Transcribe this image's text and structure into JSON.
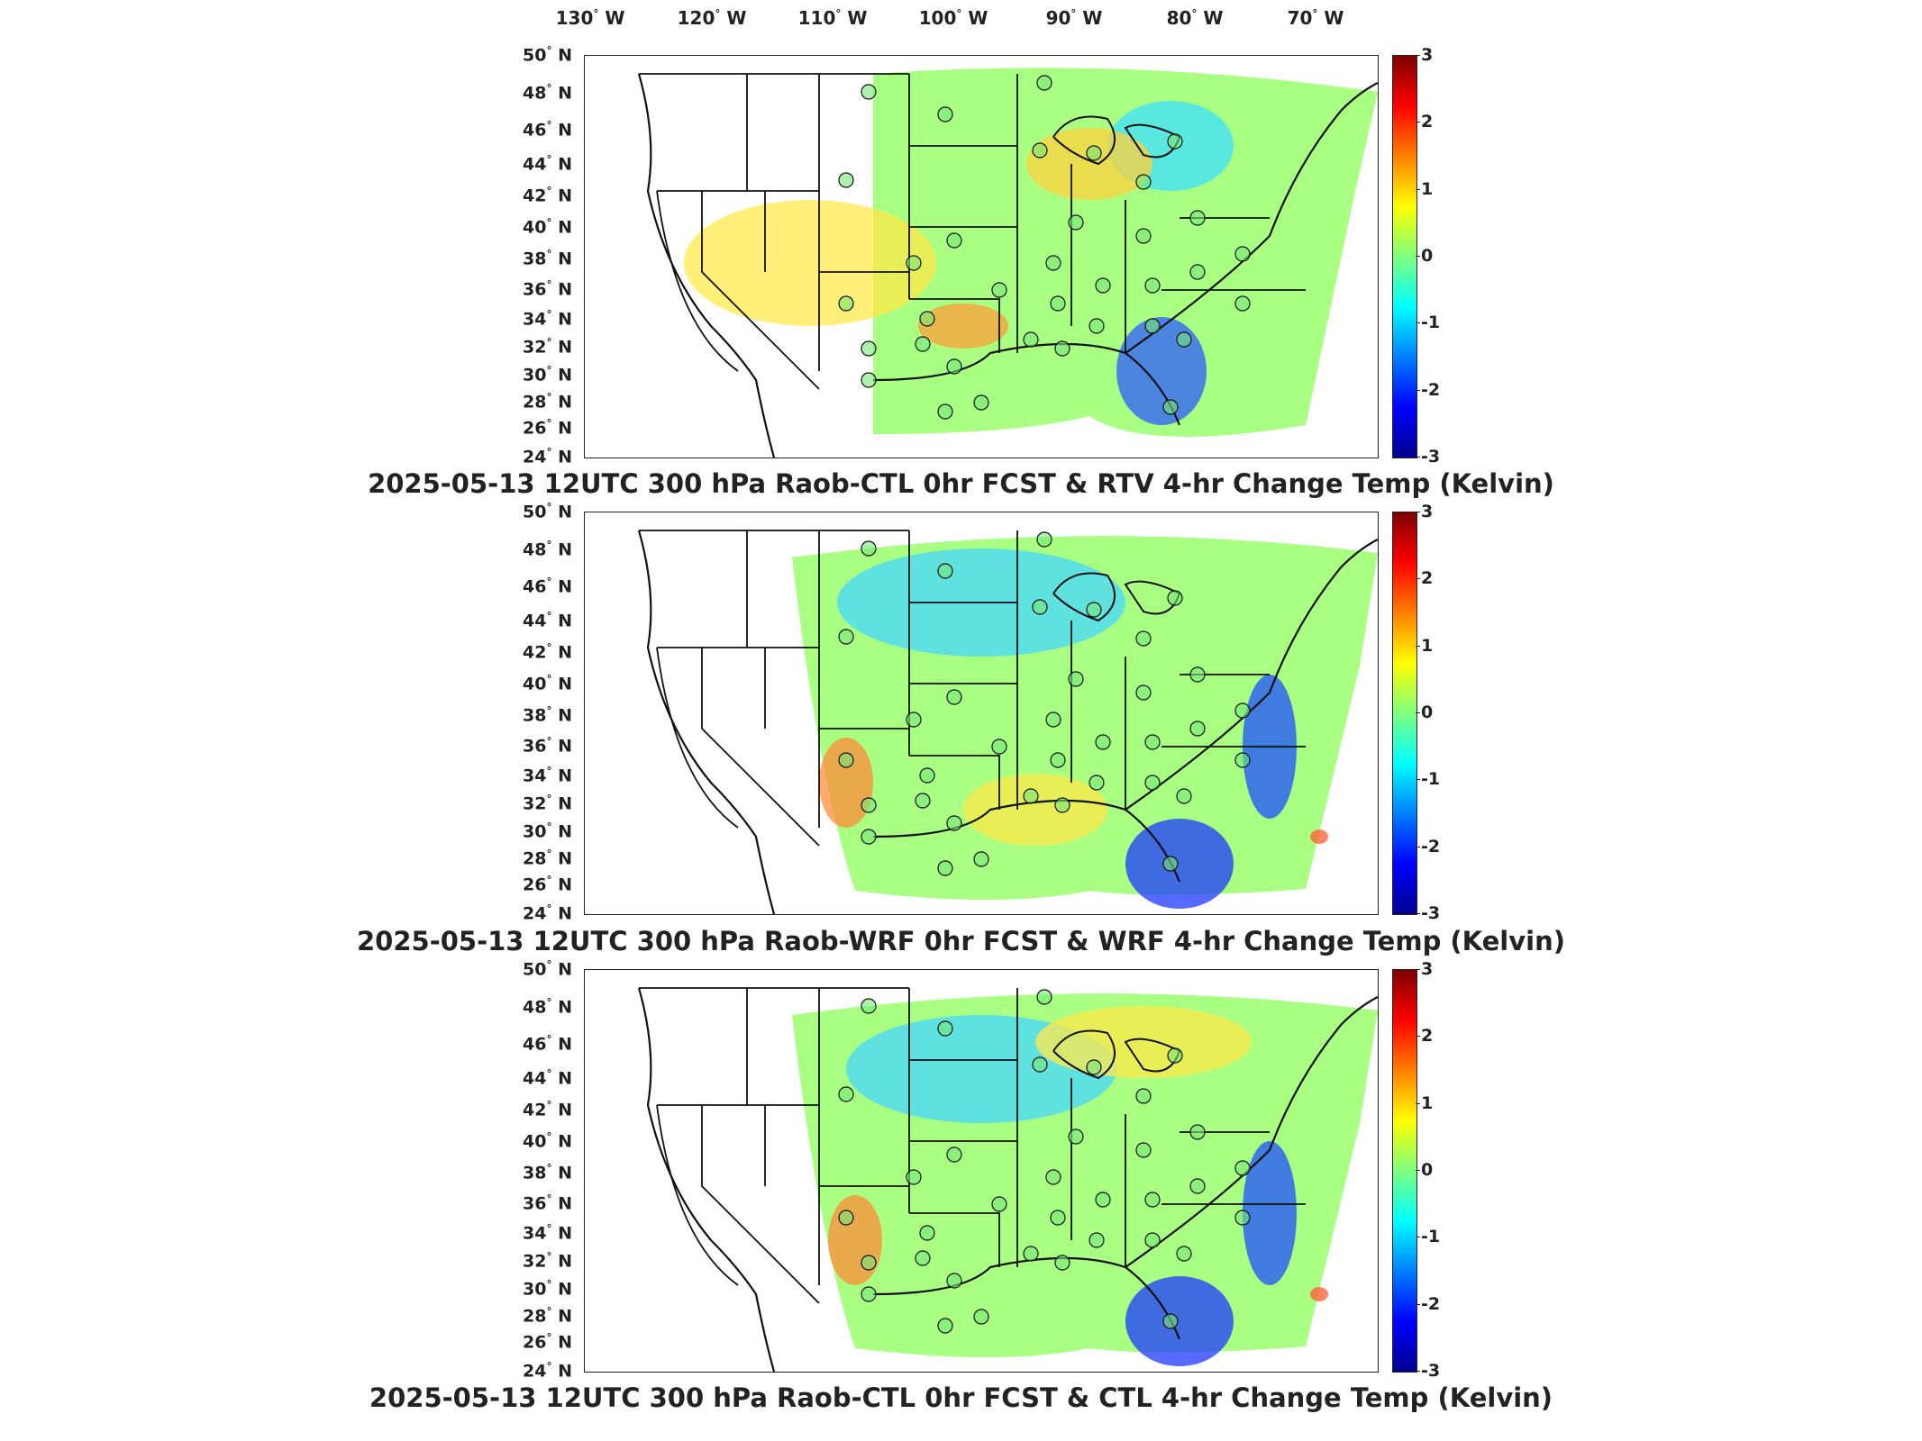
{
  "longitude_labels": [
    "130",
    "120",
    "110",
    "100",
    "90",
    "80",
    "70"
  ],
  "lon_suffix": "W",
  "latitude_labels": [
    "50",
    "48",
    "46",
    "44",
    "42",
    "40",
    "38",
    "36",
    "34",
    "32",
    "30",
    "28",
    "26",
    "24"
  ],
  "lat_suffix": "N",
  "colorbar_ticks": [
    "3",
    "2",
    "1",
    "0",
    "-1",
    "-2",
    "-3"
  ],
  "colormap": [
    "#00008f",
    "#0000ff",
    "#007fff",
    "#00ffff",
    "#7fff7f",
    "#ffff00",
    "#ff7f00",
    "#ff0000",
    "#7f0000"
  ],
  "panels": [
    {
      "title": "2025-05-13 12UTC 300 hPa Raob-CTL 0hr FCST & RTV 4-hr Change Temp (Kelvin)"
    },
    {
      "title": "2025-05-13 12UTC 300 hPa Raob-WRF 0hr FCST & WRF 4-hr Change Temp (Kelvin)"
    },
    {
      "title": "2025-05-13 12UTC 300 hPa Raob-CTL 0hr FCST & CTL 4-hr Change Temp (Kelvin)"
    }
  ]
}
